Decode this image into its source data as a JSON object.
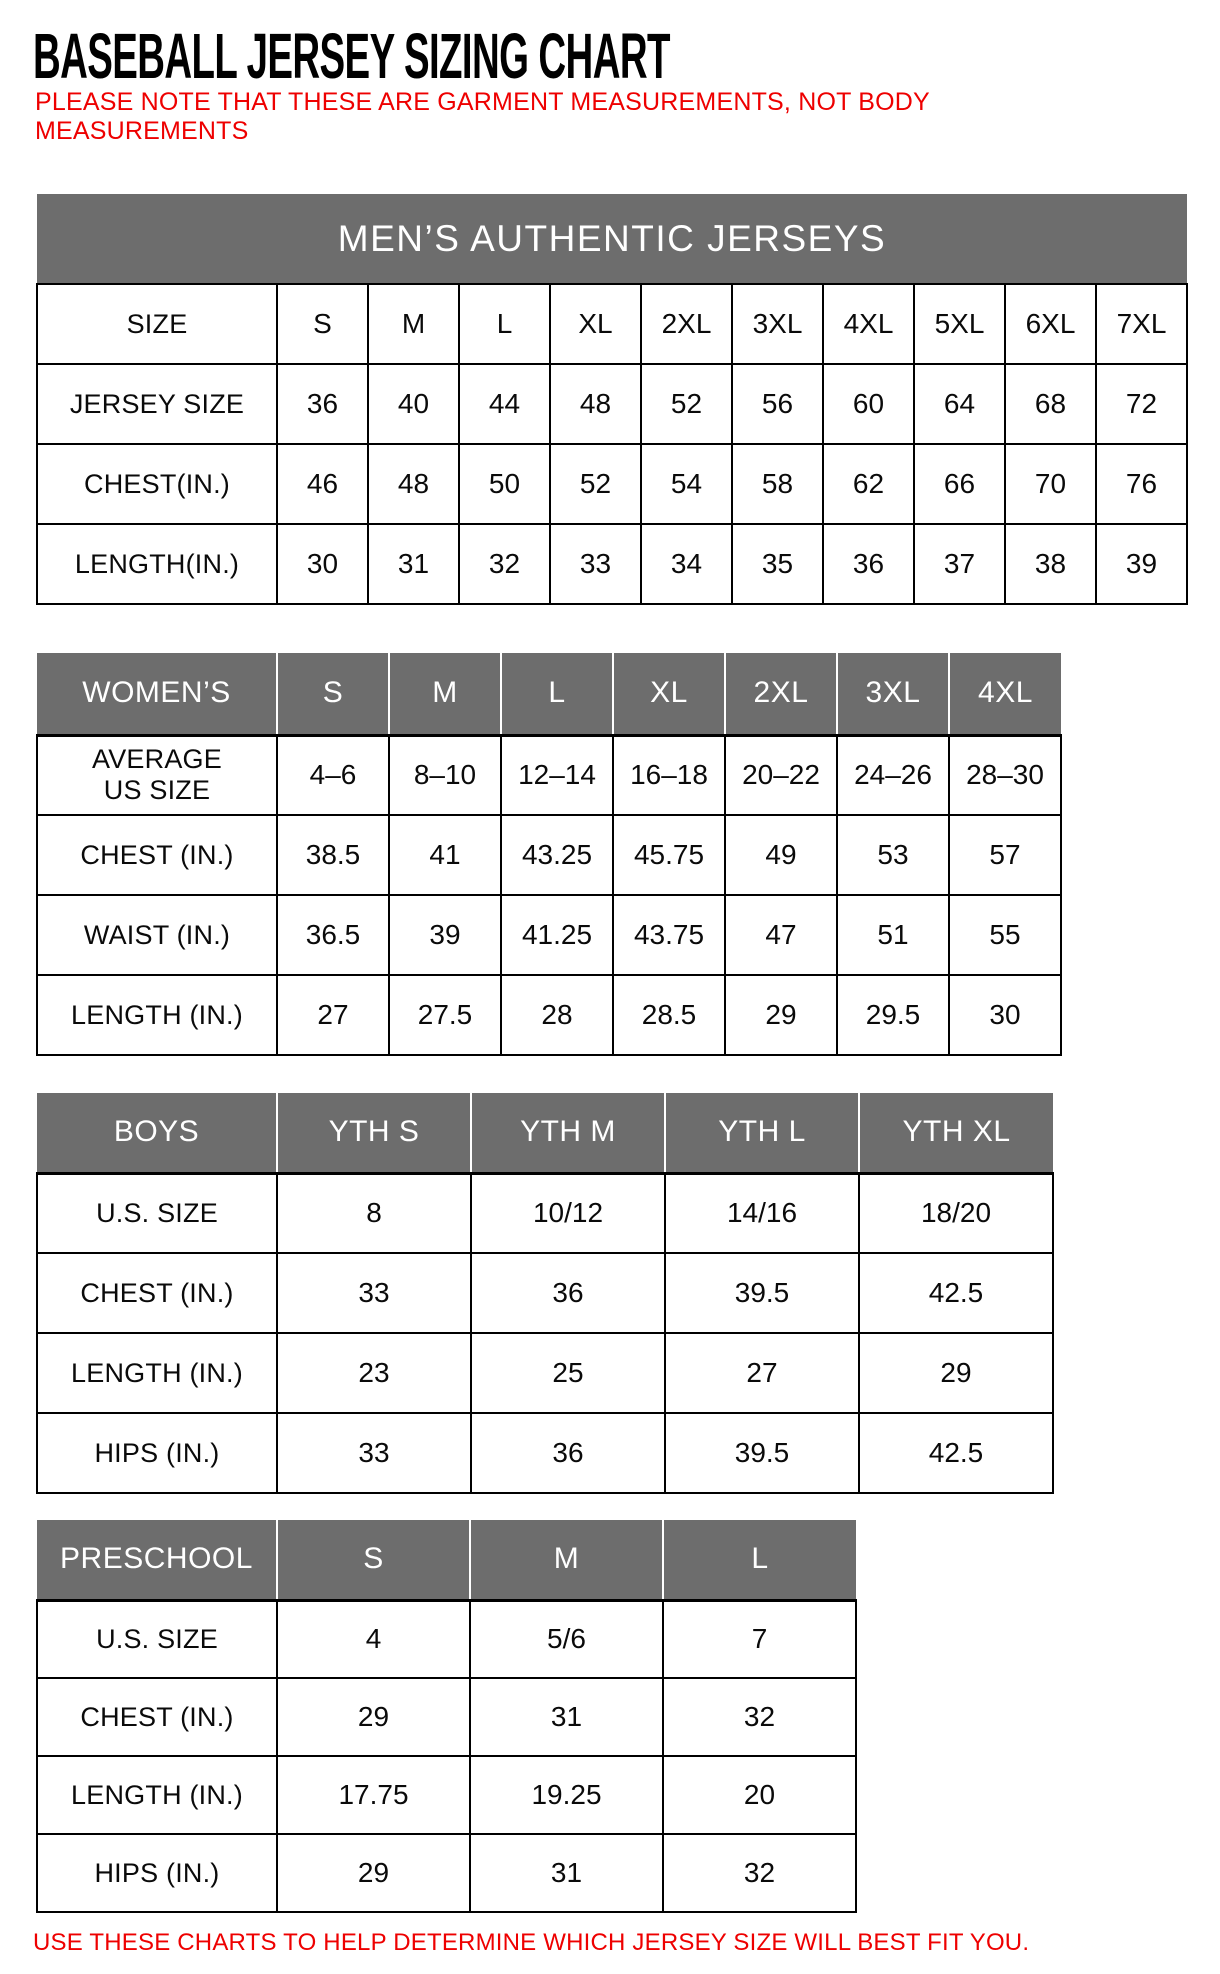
{
  "page": {
    "title": "BASEBALL JERSEY SIZING CHART",
    "note_line1": "PLEASE NOTE THAT THESE ARE GARMENT MEASUREMENTS, NOT BODY",
    "note_line2": "MEASUREMENTS",
    "footer": "USE THESE CHARTS TO HELP DETERMINE WHICH JERSEY SIZE WILL BEST FIT YOU.",
    "colors": {
      "accent_red": "#ee0000",
      "header_gray": "#6d6d6d",
      "grid_black": "#000000",
      "header_text_white": "#ffffff"
    }
  },
  "tables": {
    "mens": {
      "banner": "MEN’S AUTHENTIC JERSEYS",
      "rows": [
        [
          "SIZE",
          "S",
          "M",
          "L",
          "XL",
          "2XL",
          "3XL",
          "4XL",
          "5XL",
          "6XL",
          "7XL"
        ],
        [
          "JERSEY SIZE",
          "36",
          "40",
          "44",
          "48",
          "52",
          "56",
          "60",
          "64",
          "68",
          "72"
        ],
        [
          "CHEST(IN.)",
          "46",
          "48",
          "50",
          "52",
          "54",
          "58",
          "62",
          "66",
          "70",
          "76"
        ],
        [
          "LENGTH(IN.)",
          "30",
          "31",
          "32",
          "33",
          "34",
          "35",
          "36",
          "37",
          "38",
          "39"
        ]
      ]
    },
    "womens": {
      "header": [
        "WOMEN’S",
        "S",
        "M",
        "L",
        "XL",
        "2XL",
        "3XL",
        "4XL"
      ],
      "rows": [
        [
          "AVERAGE\nUS SIZE",
          "4–6",
          "8–10",
          "12–14",
          "16–18",
          "20–22",
          "24–26",
          "28–30"
        ],
        [
          "CHEST (IN.)",
          "38.5",
          "41",
          "43.25",
          "45.75",
          "49",
          "53",
          "57"
        ],
        [
          "WAIST (IN.)",
          "36.5",
          "39",
          "41.25",
          "43.75",
          "47",
          "51",
          "55"
        ],
        [
          "LENGTH (IN.)",
          "27",
          "27.5",
          "28",
          "28.5",
          "29",
          "29.5",
          "30"
        ]
      ]
    },
    "boys": {
      "header": [
        "BOYS",
        "YTH S",
        "YTH M",
        "YTH L",
        "YTH XL"
      ],
      "rows": [
        [
          "U.S. SIZE",
          "8",
          "10/12",
          "14/16",
          "18/20"
        ],
        [
          "CHEST (IN.)",
          "33",
          "36",
          "39.5",
          "42.5"
        ],
        [
          "LENGTH (IN.)",
          "23",
          "25",
          "27",
          "29"
        ],
        [
          "HIPS (IN.)",
          "33",
          "36",
          "39.5",
          "42.5"
        ]
      ]
    },
    "preschool": {
      "header": [
        "PRESCHOOL",
        "S",
        "M",
        "L"
      ],
      "rows": [
        [
          "U.S. SIZE",
          "4",
          "5/6",
          "7"
        ],
        [
          "CHEST (IN.)",
          "29",
          "31",
          "32"
        ],
        [
          "LENGTH (IN.)",
          "17.75",
          "19.25",
          "20"
        ],
        [
          "HIPS (IN.)",
          "29",
          "31",
          "32"
        ]
      ]
    }
  }
}
